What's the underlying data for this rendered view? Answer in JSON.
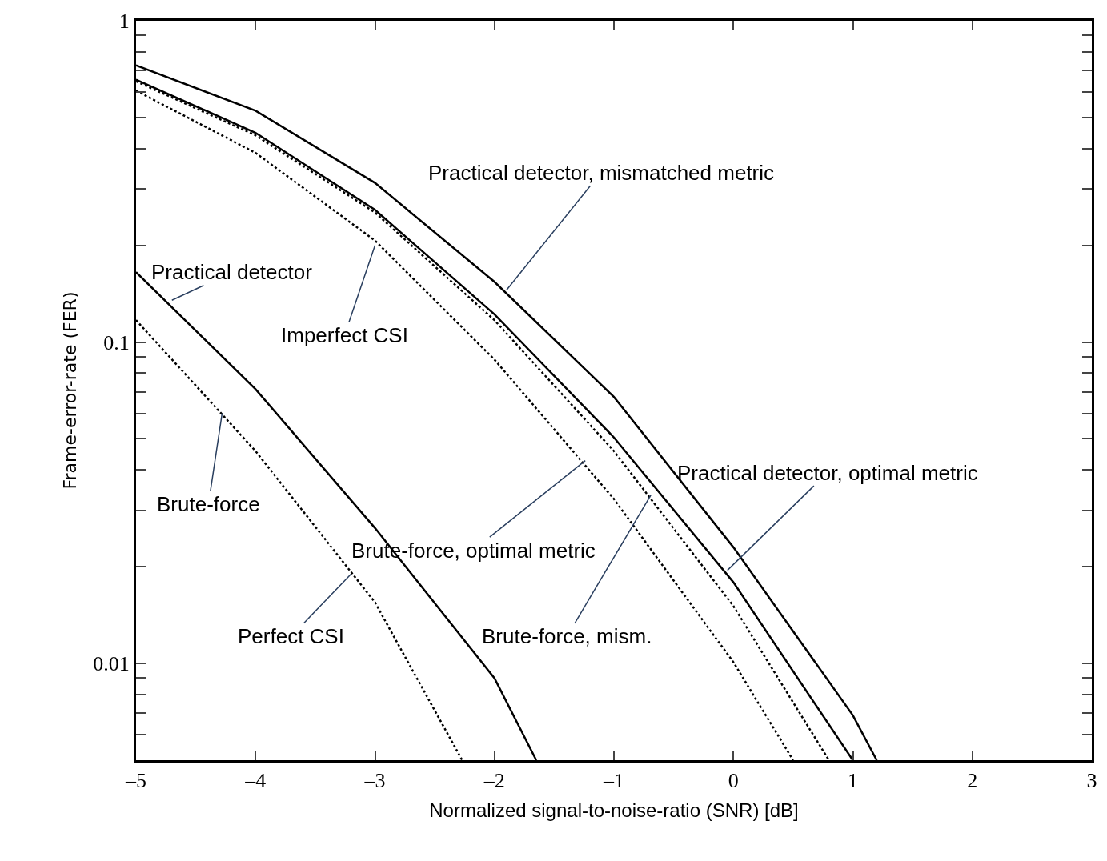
{
  "chart_data": {
    "type": "line",
    "xlabel": "Normalized signal-to-noise-ratio (SNR) [dB]",
    "ylabel": "Frame-error-rate (FER)",
    "log": "y",
    "marker": "none",
    "xlim": [
      -5,
      3
    ],
    "ylim": [
      0.005,
      1
    ],
    "xticks": [
      {
        "value": -5,
        "label": "–5"
      },
      {
        "value": -4,
        "label": "–4"
      },
      {
        "value": -3,
        "label": "–3"
      },
      {
        "value": -2,
        "label": "–2"
      },
      {
        "value": -1,
        "label": "–1"
      },
      0,
      1,
      2,
      3
    ],
    "yticks": [
      {
        "value": 0.005,
        "label": null
      },
      {
        "value": 0.006,
        "label": null
      },
      {
        "value": 0.007,
        "label": null
      },
      {
        "value": 0.008,
        "label": null
      },
      {
        "value": 0.009,
        "label": null
      },
      0.01,
      {
        "value": 0.02,
        "label": null
      },
      {
        "value": 0.03,
        "label": null
      },
      {
        "value": 0.04,
        "label": null
      },
      {
        "value": 0.05,
        "label": null
      },
      {
        "value": 0.06,
        "label": null
      },
      {
        "value": 0.07,
        "label": null
      },
      {
        "value": 0.08,
        "label": null
      },
      {
        "value": 0.09,
        "label": null
      },
      0.1,
      {
        "value": 0.2,
        "label": null
      },
      {
        "value": 0.3,
        "label": null
      },
      {
        "value": 0.4,
        "label": null
      },
      {
        "value": 0.5,
        "label": null
      },
      {
        "value": 0.6,
        "label": null
      },
      {
        "value": 0.7,
        "label": null
      },
      {
        "value": 0.8,
        "label": null
      },
      {
        "value": 0.9,
        "label": null
      },
      1
    ],
    "series": [
      {
        "color": "#000000",
        "line_style": "solid",
        "x": [
          -5,
          -4,
          -3,
          -2,
          -1,
          0,
          1,
          1.2
        ],
        "values": [
          0.727,
          0.525,
          0.313,
          0.154,
          0.0675,
          0.023,
          0.0069,
          0.005
        ]
      },
      {
        "color": "#000000",
        "line_style": "solid",
        "x": [
          -5,
          -4,
          -3,
          -2,
          -1,
          0,
          1
        ],
        "values": [
          0.656,
          0.448,
          0.258,
          0.122,
          0.0505,
          0.0179,
          0.005
        ]
      },
      {
        "color": "#000000",
        "line_style": "dotted",
        "x": [
          -5,
          -4,
          -3,
          -2,
          -1,
          0,
          0.8
        ],
        "values": [
          0.648,
          0.44,
          0.253,
          0.117,
          0.0458,
          0.0151,
          0.005
        ]
      },
      {
        "color": "#000000",
        "line_style": "dotted",
        "x": [
          -5,
          -4,
          -3,
          -2,
          -1,
          0,
          0.5
        ],
        "values": [
          0.606,
          0.388,
          0.207,
          0.0882,
          0.0325,
          0.0101,
          0.005
        ]
      },
      {
        "color": "#000000",
        "line_style": "solid",
        "x": [
          -5,
          -4,
          -3,
          -2,
          -1.65
        ],
        "values": [
          0.165,
          0.0714,
          0.0264,
          0.009,
          0.005
        ]
      },
      {
        "color": "#000000",
        "line_style": "dotted",
        "x": [
          -5,
          -4,
          -3,
          -2.27
        ],
        "values": [
          0.117,
          0.0458,
          0.0155,
          0.005
        ]
      }
    ],
    "annotations": [
      {
        "text": "Practical detector, mismatched metric",
        "x": -1.9,
        "y": 0.145
      },
      {
        "text": "Imperfect CSI",
        "x": -3,
        "y": 0.2
      },
      {
        "text": "Practical detector",
        "x": -4.7,
        "y": 0.135
      },
      {
        "text": "Brute-force",
        "x": -4.28,
        "y": 0.06
      },
      {
        "text": "Brute-force, optimal metric",
        "x": -1.24,
        "y": 0.0428
      },
      {
        "text": "Perfect CSI",
        "x": -3.2,
        "y": 0.019
      },
      {
        "text": "Practical detector, optimal metric",
        "x": -0.05,
        "y": 0.0195
      },
      {
        "text": "Brute-force, mism.",
        "x": -0.69,
        "y": 0.0335
      }
    ]
  }
}
